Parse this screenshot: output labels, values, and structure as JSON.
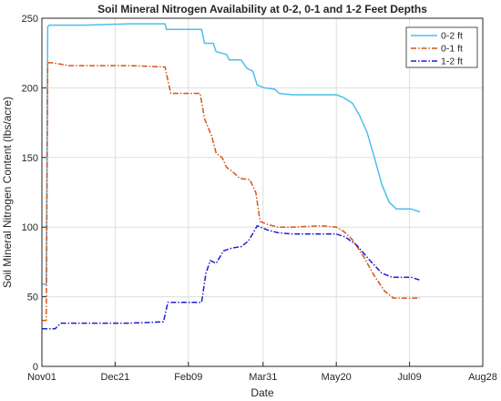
{
  "chart_data": {
    "type": "line",
    "title": "Soil Mineral Nitrogen Availability at 0-2, 0-1 and 1-2 Feet Depths",
    "xlabel": "Date",
    "ylabel": "Soil Mineral Nitrogen Content (lbs/acre)",
    "x_ticks": [
      "Nov01",
      "Dec21",
      "Feb09",
      "Mar31",
      "May20",
      "Jul09",
      "Aug28"
    ],
    "x_tick_dates": [
      "2019-11-01",
      "2019-12-21",
      "2020-02-09",
      "2020-03-31",
      "2020-05-20",
      "2020-07-09",
      "2020-08-28"
    ],
    "xlim": [
      "2019-11-01",
      "2020-08-28"
    ],
    "ylim": [
      0,
      250
    ],
    "y_ticks": [
      0,
      50,
      100,
      150,
      200,
      250
    ],
    "grid": true,
    "legend_position": "top-right",
    "series": [
      {
        "name": "0-2 ft",
        "color": "#4dbeee",
        "line_style": "solid",
        "points": [
          [
            "2019-11-01",
            59
          ],
          [
            "2019-11-04",
            59
          ],
          [
            "2019-11-05",
            244
          ],
          [
            "2019-11-06",
            245
          ],
          [
            "2019-11-30",
            245
          ],
          [
            "2019-12-31",
            246
          ],
          [
            "2020-01-24",
            246
          ],
          [
            "2020-01-25",
            242
          ],
          [
            "2020-02-09",
            242
          ],
          [
            "2020-02-18",
            242
          ],
          [
            "2020-02-20",
            232
          ],
          [
            "2020-02-26",
            232
          ],
          [
            "2020-02-28",
            226
          ],
          [
            "2020-03-06",
            224
          ],
          [
            "2020-03-08",
            220
          ],
          [
            "2020-03-16",
            220
          ],
          [
            "2020-03-20",
            214
          ],
          [
            "2020-03-24",
            212
          ],
          [
            "2020-03-27",
            202
          ],
          [
            "2020-04-01",
            200
          ],
          [
            "2020-04-08",
            199
          ],
          [
            "2020-04-11",
            196
          ],
          [
            "2020-04-20",
            195
          ],
          [
            "2020-05-10",
            195
          ],
          [
            "2020-05-20",
            195
          ],
          [
            "2020-05-25",
            193
          ],
          [
            "2020-05-31",
            189
          ],
          [
            "2020-06-05",
            180
          ],
          [
            "2020-06-10",
            168
          ],
          [
            "2020-06-15",
            150
          ],
          [
            "2020-06-20",
            131
          ],
          [
            "2020-06-25",
            118
          ],
          [
            "2020-06-30",
            113
          ],
          [
            "2020-07-10",
            113
          ],
          [
            "2020-07-16",
            111
          ]
        ]
      },
      {
        "name": "0-1 ft",
        "color": "#d95319",
        "line_style": "dash-dot",
        "points": [
          [
            "2019-11-01",
            33
          ],
          [
            "2019-11-04",
            33
          ],
          [
            "2019-11-05",
            218
          ],
          [
            "2019-11-08",
            218
          ],
          [
            "2019-11-20",
            216
          ],
          [
            "2019-12-31",
            216
          ],
          [
            "2020-01-24",
            215
          ],
          [
            "2020-01-28",
            196
          ],
          [
            "2020-02-09",
            196
          ],
          [
            "2020-02-17",
            196
          ],
          [
            "2020-02-20",
            178
          ],
          [
            "2020-02-25",
            165
          ],
          [
            "2020-02-28",
            153
          ],
          [
            "2020-03-03",
            150
          ],
          [
            "2020-03-06",
            143
          ],
          [
            "2020-03-10",
            140
          ],
          [
            "2020-03-15",
            135
          ],
          [
            "2020-03-22",
            134
          ],
          [
            "2020-03-26",
            125
          ],
          [
            "2020-03-29",
            104
          ],
          [
            "2020-04-03",
            102
          ],
          [
            "2020-04-10",
            100
          ],
          [
            "2020-04-20",
            100
          ],
          [
            "2020-05-10",
            101
          ],
          [
            "2020-05-20",
            100
          ],
          [
            "2020-05-25",
            97
          ],
          [
            "2020-05-31",
            91
          ],
          [
            "2020-06-07",
            80
          ],
          [
            "2020-06-15",
            65
          ],
          [
            "2020-06-22",
            54
          ],
          [
            "2020-06-28",
            49
          ],
          [
            "2020-07-05",
            49
          ],
          [
            "2020-07-16",
            49
          ]
        ]
      },
      {
        "name": "1-2 ft",
        "color": "#1f1fd0",
        "line_style": "dash-dot",
        "points": [
          [
            "2019-11-01",
            27
          ],
          [
            "2019-11-10",
            27
          ],
          [
            "2019-11-14",
            31
          ],
          [
            "2019-12-31",
            31
          ],
          [
            "2020-01-23",
            32
          ],
          [
            "2020-01-26",
            46
          ],
          [
            "2020-02-09",
            46
          ],
          [
            "2020-02-18",
            46
          ],
          [
            "2020-02-21",
            67
          ],
          [
            "2020-02-24",
            76
          ],
          [
            "2020-02-28",
            74
          ],
          [
            "2020-03-04",
            83
          ],
          [
            "2020-03-10",
            85
          ],
          [
            "2020-03-16",
            86
          ],
          [
            "2020-03-21",
            90
          ],
          [
            "2020-03-27",
            101
          ],
          [
            "2020-04-03",
            98
          ],
          [
            "2020-04-10",
            96
          ],
          [
            "2020-04-20",
            95
          ],
          [
            "2020-05-10",
            95
          ],
          [
            "2020-05-20",
            95
          ],
          [
            "2020-05-26",
            93
          ],
          [
            "2020-06-03",
            87
          ],
          [
            "2020-06-12",
            76
          ],
          [
            "2020-06-20",
            67
          ],
          [
            "2020-06-27",
            64
          ],
          [
            "2020-07-10",
            64
          ],
          [
            "2020-07-16",
            62
          ]
        ]
      }
    ]
  }
}
